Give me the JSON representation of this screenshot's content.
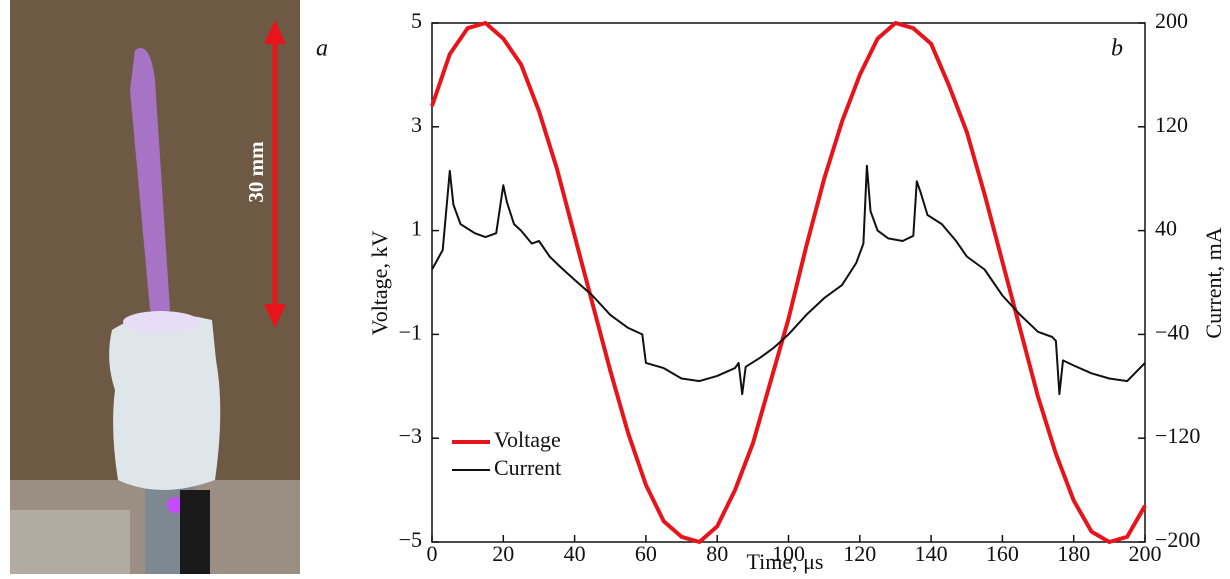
{
  "photo": {
    "panel_label": "a",
    "scale_label": "30 mm"
  },
  "chart_data": {
    "type": "line",
    "panel_label": "b",
    "xlabel": "Time, μs",
    "ylabel": "Voltage, kV",
    "y2label": "Current, mA",
    "xlim": [
      0,
      200
    ],
    "xticks": [
      0,
      20,
      40,
      60,
      80,
      100,
      120,
      140,
      160,
      180,
      200
    ],
    "ylim": [
      -5,
      5
    ],
    "yticks": [
      {
        "value": -5,
        "label": "−5"
      },
      {
        "value": -3,
        "label": "−3"
      },
      {
        "value": -1,
        "label": "−1"
      },
      1,
      3,
      5
    ],
    "y2lim": [
      -200,
      200
    ],
    "y2ticks": [
      {
        "value": -200,
        "label": "−200"
      },
      {
        "value": -120,
        "label": "−120"
      },
      {
        "value": -40,
        "label": "−40"
      },
      40,
      120,
      200
    ],
    "legend": "lower left",
    "x": [
      0,
      5,
      10,
      15,
      20,
      25,
      30,
      35,
      40,
      45,
      50,
      55,
      60,
      65,
      70,
      75,
      80,
      85,
      90,
      95,
      100,
      105,
      110,
      115,
      120,
      125,
      130,
      135,
      140,
      145,
      150,
      155,
      160,
      165,
      170,
      175,
      180,
      185,
      190,
      195,
      200
    ],
    "series": [
      {
        "name": "Voltage",
        "color": "#e8141b",
        "axis": "y",
        "values": [
          3.4,
          4.4,
          4.9,
          5.0,
          4.7,
          4.2,
          3.3,
          2.2,
          0.9,
          -0.4,
          -1.7,
          -2.9,
          -3.9,
          -4.6,
          -4.9,
          -5.0,
          -4.7,
          -4.0,
          -3.1,
          -1.9,
          -0.7,
          0.7,
          2.0,
          3.1,
          4.0,
          4.7,
          5.0,
          4.9,
          4.6,
          3.8,
          2.9,
          1.7,
          0.4,
          -0.9,
          -2.2,
          -3.3,
          -4.2,
          -4.8,
          -5.0,
          -4.9,
          -4.3
        ]
      },
      {
        "name": "Current",
        "color": "#111111",
        "axis": "y2",
        "x": [
          0,
          3,
          5,
          6,
          8,
          12,
          15,
          18,
          20,
          21,
          23,
          25,
          28,
          30,
          33,
          36,
          40,
          45,
          50,
          55,
          59,
          60,
          65,
          70,
          75,
          80,
          85,
          86,
          87,
          88,
          92,
          96,
          100,
          105,
          110,
          115,
          119,
          121,
          122,
          123,
          125,
          128,
          132,
          135,
          136,
          137,
          139,
          143,
          147,
          150,
          155,
          160,
          165,
          170,
          174,
          175,
          176,
          177,
          180,
          185,
          190,
          195,
          200
        ],
        "values": [
          10,
          25,
          86,
          60,
          45,
          38,
          35,
          38,
          75,
          62,
          45,
          40,
          30,
          32,
          20,
          12,
          2,
          -10,
          -25,
          -35,
          -40,
          -62,
          -66,
          -74,
          -76,
          -72,
          -66,
          -62,
          -86,
          -65,
          -58,
          -50,
          -40,
          -25,
          -12,
          -2,
          15,
          30,
          90,
          55,
          40,
          34,
          32,
          36,
          78,
          70,
          52,
          45,
          32,
          20,
          10,
          -10,
          -25,
          -38,
          -42,
          -45,
          -86,
          -60,
          -64,
          -70,
          -74,
          -76,
          -62
        ]
      }
    ]
  }
}
